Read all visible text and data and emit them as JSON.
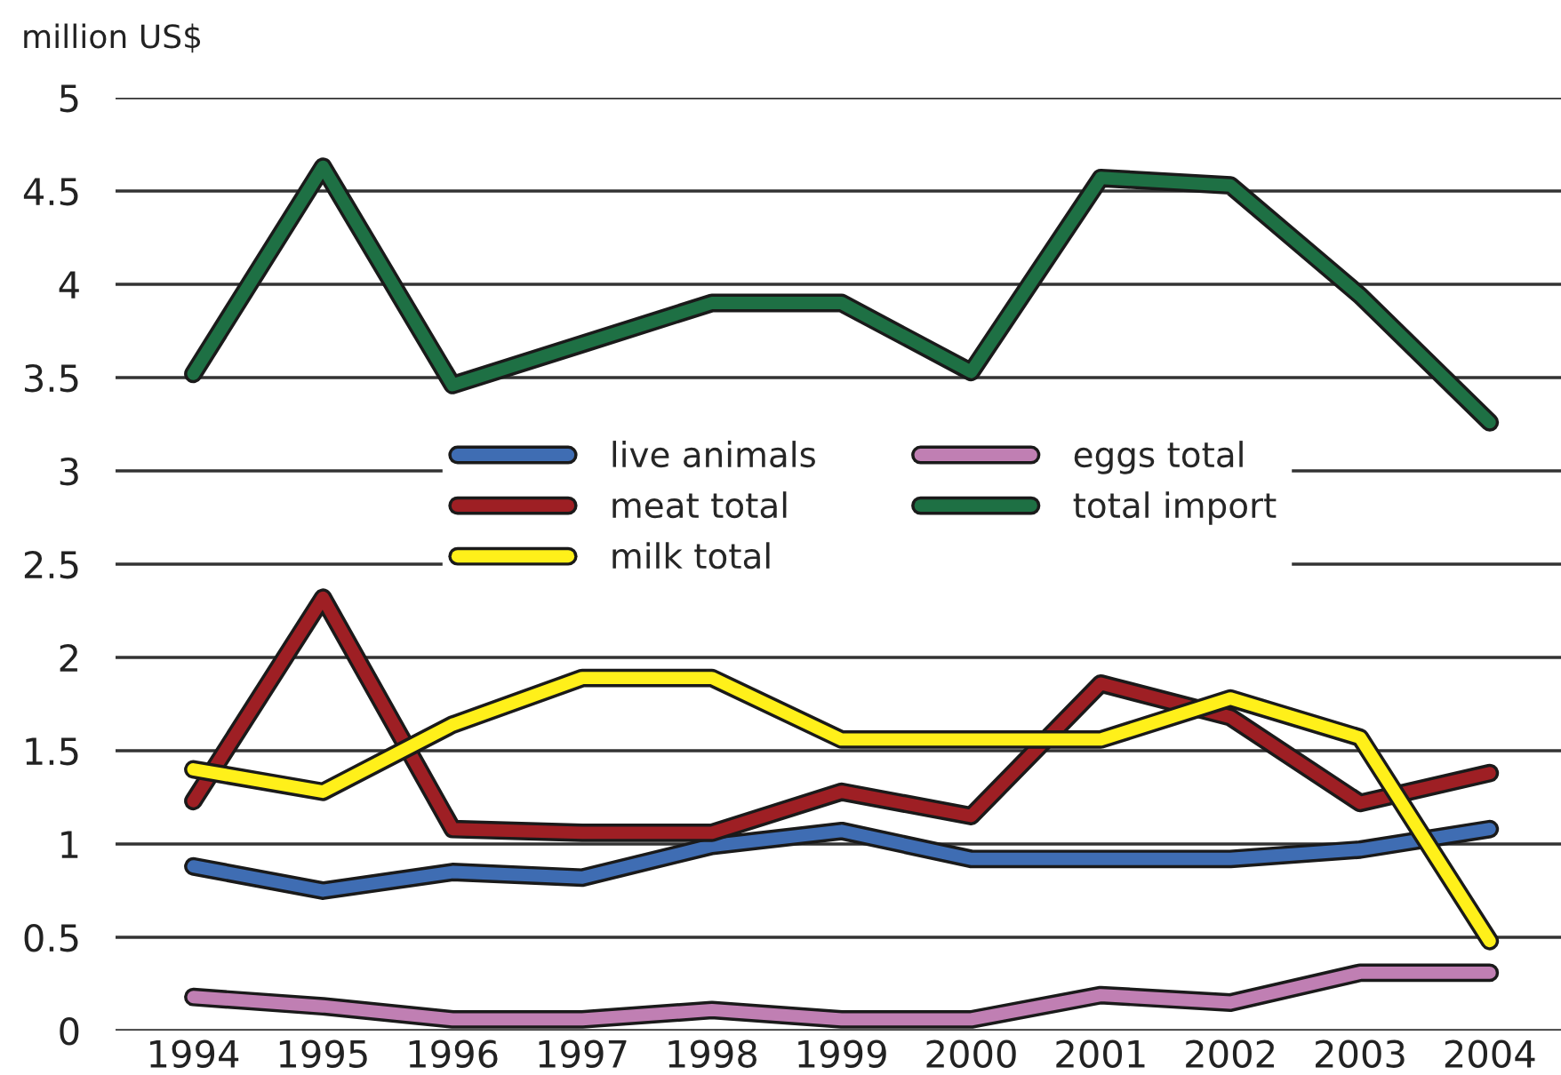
{
  "chart_data": {
    "type": "line",
    "ylabel": "million US$",
    "categories": [
      "1994",
      "1995",
      "1996",
      "1997",
      "1998",
      "1999",
      "2000",
      "2001",
      "2002",
      "2003",
      "2004"
    ],
    "series": [
      {
        "name": "live animals",
        "color": "#3f6db3",
        "values": [
          0.88,
          0.75,
          0.85,
          0.82,
          0.99,
          1.07,
          0.92,
          0.92,
          0.92,
          0.97,
          1.08
        ]
      },
      {
        "name": "meat total",
        "color": "#9e1f24",
        "values": [
          1.23,
          2.32,
          1.08,
          1.06,
          1.06,
          1.28,
          1.15,
          1.86,
          1.68,
          1.22,
          1.38
        ]
      },
      {
        "name": "milk total",
        "color": "#fff01a",
        "values": [
          1.4,
          1.28,
          1.64,
          1.89,
          1.89,
          1.56,
          1.56,
          1.56,
          1.78,
          1.57,
          0.48
        ]
      },
      {
        "name": "eggs total",
        "color": "#c07fb3",
        "values": [
          0.18,
          0.13,
          0.06,
          0.06,
          0.11,
          0.06,
          0.06,
          0.19,
          0.15,
          0.31,
          0.31
        ]
      },
      {
        "name": "total import",
        "color": "#1e7044",
        "values": [
          3.52,
          4.63,
          3.46,
          3.68,
          3.9,
          3.9,
          3.53,
          4.57,
          4.53,
          3.94,
          3.26
        ]
      }
    ],
    "ylim": [
      0,
      5
    ],
    "yticks": [
      0,
      {
        "value": 0.5,
        "label": "0.5"
      },
      1,
      {
        "value": 1.5,
        "label": "1.5"
      },
      2,
      {
        "value": 2.5,
        "label": "2.5"
      },
      3,
      {
        "value": 3.5,
        "label": "3.5"
      },
      4,
      {
        "value": 4.5,
        "label": "4.5"
      },
      5
    ],
    "grid": "y",
    "legend": "center",
    "marker": "none",
    "line_style": "solid"
  }
}
